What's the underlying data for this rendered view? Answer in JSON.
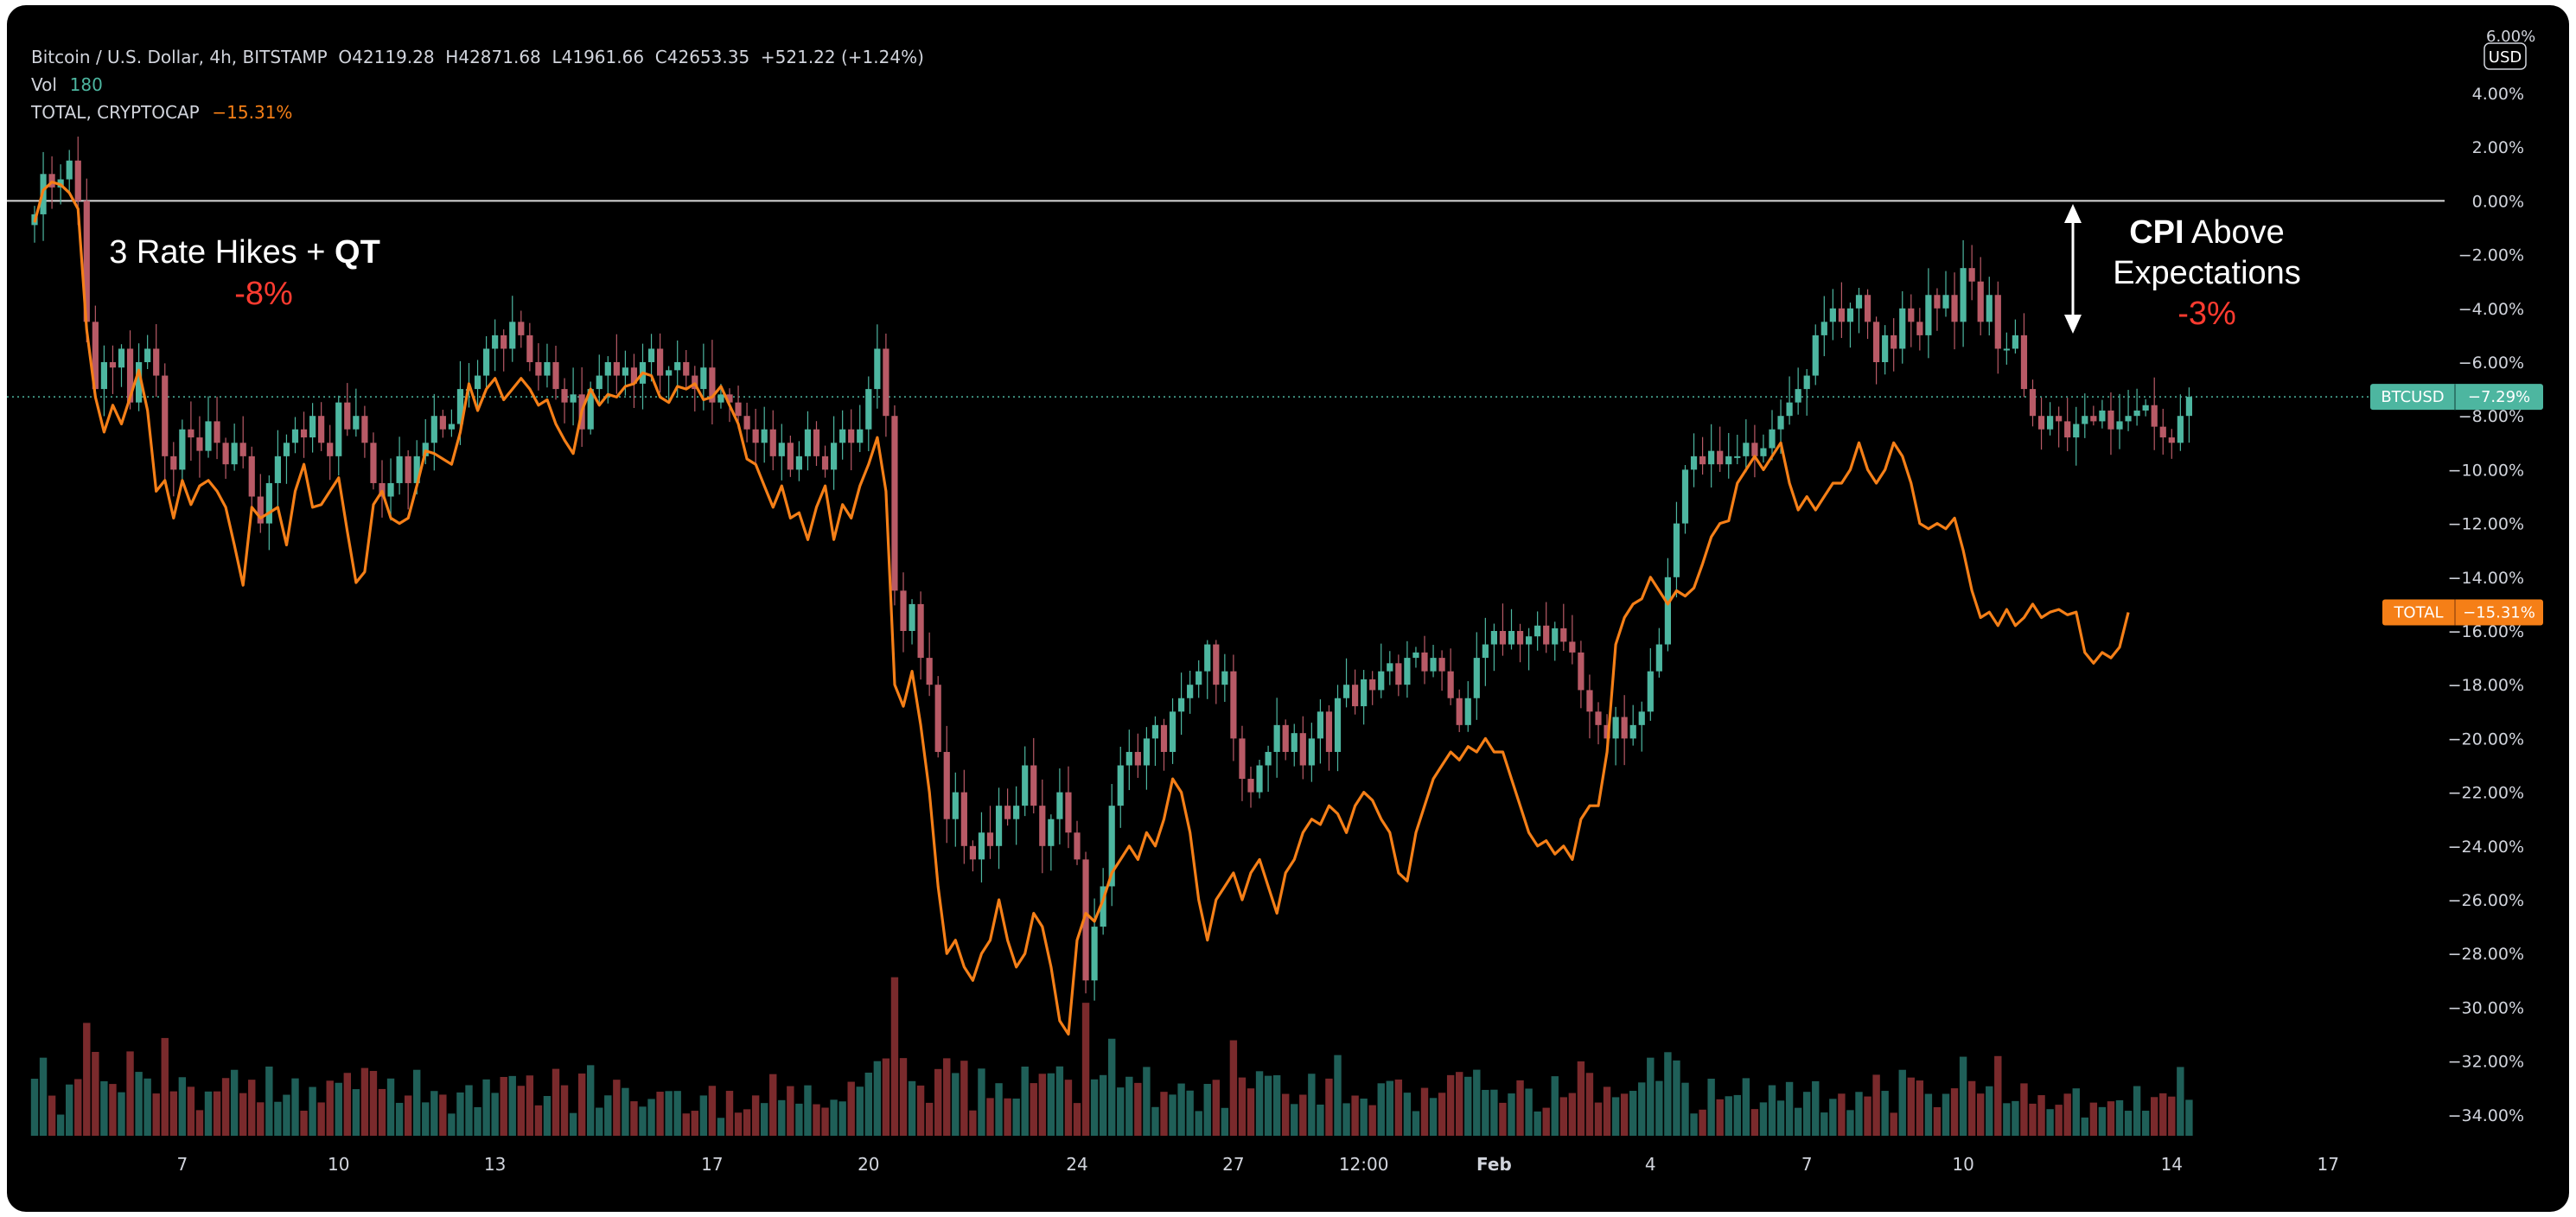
{
  "header": {
    "symbol": "Bitcoin / U.S. Dollar, 4h, BITSTAMP",
    "ohlc": "O42119.28  H42871.68  L41961.66  C42653.35  +521.22 (+1.24%)",
    "vol_label": "Vol",
    "vol_value": "180",
    "total_label": "TOTAL, CRYPTOCAP",
    "total_value": "−15.31%"
  },
  "currency_badge": "USD",
  "top_partial_label": "6.00%",
  "annotations": {
    "rate_hikes_prefix": "3 Rate Hikes + ",
    "rate_hikes_bold": "QT",
    "rate_hikes_change": "-8%",
    "cpi_bold": "CPI",
    "cpi_rest": " Above",
    "cpi_line2": "Expectations",
    "cpi_change": "-3%"
  },
  "price_tags": {
    "btc_name": "BTCUSD",
    "btc_value": "−7.29%",
    "total_name": "TOTAL",
    "total_value": "−15.31%"
  },
  "colors": {
    "background": "#000000",
    "up": "#4db6a0",
    "down": "#b85a66",
    "vol_up": "#1f5f58",
    "vol_down": "#7a2a2c",
    "total_line": "#f57f17",
    "axis_text": "#d1d4dc",
    "annotation_red": "#ff3b30"
  },
  "chart_data": {
    "type": "line",
    "y_unit": "percent change",
    "ylim": [
      -34,
      6
    ],
    "y_ticks": [
      4,
      2,
      0,
      -2,
      -4,
      -6,
      -8,
      -10,
      -12,
      -14,
      -16,
      -18,
      -20,
      -22,
      -24,
      -26,
      -28,
      -30,
      -32,
      -34
    ],
    "y_tick_labels": [
      "4.00%",
      "2.00%",
      "0.00%",
      "−2.00%",
      "−4.00%",
      "−6.00%",
      "−8.00%",
      "−10.00%",
      "−12.00%",
      "−14.00%",
      "−16.00%",
      "−18.00%",
      "−20.00%",
      "−22.00%",
      "−24.00%",
      "−26.00%",
      "−28.00%",
      "−30.00%",
      "−32.00%",
      "−34.00%"
    ],
    "x_ticks": [
      {
        "label": "7",
        "bar": 17,
        "bold": false
      },
      {
        "label": "10",
        "bar": 35,
        "bold": false
      },
      {
        "label": "13",
        "bar": 53,
        "bold": false
      },
      {
        "label": "17",
        "bar": 78,
        "bold": false
      },
      {
        "label": "20",
        "bar": 96,
        "bold": false
      },
      {
        "label": "24",
        "bar": 120,
        "bold": false
      },
      {
        "label": "27",
        "bar": 138,
        "bold": false
      },
      {
        "label": "12:00",
        "bar": 153,
        "bold": false
      },
      {
        "label": "Feb",
        "bar": 168,
        "bold": true
      },
      {
        "label": "4",
        "bar": 186,
        "bold": false
      },
      {
        "label": "7",
        "bar": 204,
        "bold": false
      },
      {
        "label": "10",
        "bar": 222,
        "bold": false
      },
      {
        "label": "14",
        "bar": 246,
        "bold": false
      },
      {
        "label": "17",
        "bar": 264,
        "bold": false
      }
    ],
    "bars_visible": 250,
    "reference_levels": [
      0,
      -7.29
    ],
    "btc_close": [
      -0.5,
      1.0,
      0.5,
      0.8,
      1.5,
      0.0,
      -4.5,
      -7.0,
      -6.0,
      -6.2,
      -5.5,
      -7.5,
      -6.0,
      -5.5,
      -6.5,
      -9.5,
      -10.0,
      -8.5,
      -8.8,
      -9.3,
      -8.2,
      -9.0,
      -9.8,
      -9.0,
      -9.5,
      -11.0,
      -12.0,
      -10.5,
      -9.5,
      -9.0,
      -8.5,
      -8.8,
      -8.0,
      -9.0,
      -9.5,
      -7.5,
      -8.5,
      -8.0,
      -9.0,
      -10.5,
      -11.0,
      -10.5,
      -9.5,
      -10.5,
      -9.5,
      -9.0,
      -8.0,
      -8.5,
      -8.3,
      -7.0,
      -7.0,
      -6.5,
      -5.5,
      -5.0,
      -5.5,
      -4.5,
      -5.0,
      -6.0,
      -6.5,
      -6.0,
      -7.0,
      -7.5,
      -7.2,
      -8.5,
      -7.0,
      -6.5,
      -6.0,
      -6.5,
      -6.2,
      -6.8,
      -6.0,
      -5.5,
      -6.5,
      -6.3,
      -6.0,
      -6.5,
      -7.0,
      -6.2,
      -7.5,
      -7.2,
      -7.5,
      -8.0,
      -8.5,
      -9.0,
      -8.5,
      -9.5,
      -9.0,
      -10.0,
      -9.5,
      -8.5,
      -9.5,
      -10.0,
      -9.0,
      -8.5,
      -9.0,
      -8.5,
      -7.0,
      -5.5,
      -8.0,
      -14.5,
      -16.0,
      -15.0,
      -17.0,
      -18.0,
      -20.5,
      -23.0,
      -22.0,
      -24.0,
      -24.5,
      -23.5,
      -24.0,
      -22.5,
      -23.0,
      -22.5,
      -21.0,
      -22.5,
      -24.0,
      -23.0,
      -22.0,
      -23.5,
      -24.5,
      -29.0,
      -27.0,
      -25.5,
      -22.5,
      -21.0,
      -20.5,
      -21.0,
      -20.0,
      -19.5,
      -20.5,
      -19.0,
      -18.5,
      -18.0,
      -17.5,
      -16.5,
      -18.0,
      -17.5,
      -20.0,
      -21.5,
      -22.0,
      -21.0,
      -20.5,
      -19.5,
      -20.5,
      -19.8,
      -21.0,
      -20.0,
      -19.0,
      -20.5,
      -18.5,
      -18.0,
      -18.8,
      -17.8,
      -18.2,
      -17.5,
      -17.2,
      -18.0,
      -17.0,
      -16.8,
      -17.5,
      -17.0,
      -17.5,
      -18.5,
      -19.5,
      -18.5,
      -17.0,
      -16.5,
      -16.0,
      -16.5,
      -16.0,
      -16.5,
      -16.2,
      -15.8,
      -16.5,
      -15.9,
      -16.4,
      -16.8,
      -18.2,
      -19.0,
      -19.5,
      -20.0,
      -19.2,
      -20.0,
      -19.5,
      -19.0,
      -17.5,
      -16.5,
      -14.0,
      -12.0,
      -10.0,
      -9.5,
      -9.8,
      -9.3,
      -9.8,
      -9.5,
      -9.5,
      -9.0,
      -9.5,
      -9.2,
      -8.5,
      -8.0,
      -7.5,
      -7.0,
      -6.5,
      -5.0,
      -4.5,
      -4.0,
      -4.5,
      -4.0,
      -3.5,
      -4.5,
      -6.0,
      -5.0,
      -5.5,
      -4.0,
      -4.5,
      -5.0,
      -3.5,
      -4.0,
      -3.5,
      -4.5,
      -2.5,
      -3.0,
      -4.5,
      -3.5,
      -5.5,
      -5.5,
      -5.0,
      -7.0,
      -8.0,
      -8.5,
      -8.0,
      -8.2,
      -8.8,
      -8.3,
      -8.0,
      -8.2,
      -7.8,
      -8.5,
      -8.2,
      -8.0,
      -7.8,
      -7.6,
      -8.4,
      -8.8,
      -9.0,
      -8.0,
      -7.29
    ],
    "total_pct": [
      -0.8,
      0.4,
      0.7,
      0.6,
      0.3,
      -0.3,
      -4.8,
      -7.3,
      -8.6,
      -7.6,
      -8.3,
      -7.3,
      -6.3,
      -7.8,
      -10.8,
      -10.4,
      -11.8,
      -10.4,
      -11.3,
      -10.6,
      -10.4,
      -10.8,
      -11.4,
      -12.8,
      -14.3,
      -11.4,
      -11.8,
      -11.6,
      -11.4,
      -12.8,
      -10.8,
      -9.8,
      -11.4,
      -11.3,
      -10.8,
      -10.3,
      -12.3,
      -14.2,
      -13.8,
      -11.3,
      -10.8,
      -11.8,
      -12.0,
      -11.8,
      -10.6,
      -9.3,
      -9.4,
      -9.6,
      -9.8,
      -8.6,
      -6.8,
      -7.8,
      -7.0,
      -6.6,
      -7.4,
      -7.0,
      -6.6,
      -7.0,
      -7.6,
      -7.4,
      -8.3,
      -8.9,
      -9.4,
      -7.8,
      -7.0,
      -7.6,
      -7.2,
      -7.3,
      -6.9,
      -6.8,
      -6.4,
      -6.5,
      -7.3,
      -7.5,
      -6.9,
      -7.0,
      -6.8,
      -7.4,
      -7.3,
      -6.9,
      -7.6,
      -8.3,
      -9.6,
      -9.8,
      -10.6,
      -11.4,
      -10.6,
      -11.8,
      -11.6,
      -12.6,
      -11.4,
      -10.6,
      -12.6,
      -11.3,
      -11.8,
      -10.6,
      -9.8,
      -8.8,
      -10.8,
      -18.0,
      -18.8,
      -17.5,
      -19.5,
      -22.0,
      -25.5,
      -28.0,
      -27.5,
      -28.5,
      -29.0,
      -28.0,
      -27.5,
      -26.0,
      -27.5,
      -28.5,
      -28.0,
      -26.5,
      -27.0,
      -28.5,
      -30.5,
      -31.0,
      -27.5,
      -26.5,
      -26.8,
      -26.0,
      -25.0,
      -24.5,
      -24.0,
      -24.5,
      -23.5,
      -24.0,
      -23.0,
      -21.5,
      -22.0,
      -23.5,
      -26.0,
      -27.5,
      -26.0,
      -25.5,
      -25.0,
      -26.0,
      -25.0,
      -24.5,
      -25.5,
      -26.5,
      -25.0,
      -24.5,
      -23.5,
      -23.0,
      -23.2,
      -22.5,
      -22.8,
      -23.5,
      -22.5,
      -22.0,
      -22.3,
      -23.0,
      -23.5,
      -25.0,
      -25.3,
      -23.5,
      -22.5,
      -21.5,
      -21.0,
      -20.5,
      -20.8,
      -20.3,
      -20.5,
      -20.0,
      -20.5,
      -20.5,
      -21.5,
      -22.5,
      -23.5,
      -24.0,
      -23.8,
      -24.3,
      -24.0,
      -24.5,
      -23.0,
      -22.5,
      -22.5,
      -20.5,
      -16.5,
      -15.5,
      -15.0,
      -14.8,
      -14.0,
      -14.5,
      -15.0,
      -14.5,
      -14.7,
      -14.4,
      -13.5,
      -12.5,
      -12.0,
      -11.9,
      -10.5,
      -10.0,
      -9.5,
      -10.0,
      -9.5,
      -9.0,
      -10.5,
      -11.5,
      -11.0,
      -11.5,
      -11.0,
      -10.5,
      -10.5,
      -10.0,
      -9.0,
      -10.0,
      -10.5,
      -10.0,
      -9.0,
      -9.5,
      -10.5,
      -12.0,
      -12.2,
      -12.0,
      -12.2,
      -11.8,
      -13.0,
      -14.5,
      -15.5,
      -15.3,
      -15.8,
      -15.2,
      -15.8,
      -15.5,
      -15.0,
      -15.5,
      -15.3,
      -15.2,
      -15.4,
      -15.3,
      -16.8,
      -17.2,
      -16.8,
      -17.0,
      -16.6,
      -15.31
    ],
    "series": [
      {
        "name": "BTCUSD",
        "values_key": "btc_close",
        "style": "candlestick"
      },
      {
        "name": "TOTAL",
        "values_key": "total_pct",
        "style": "line"
      }
    ]
  }
}
